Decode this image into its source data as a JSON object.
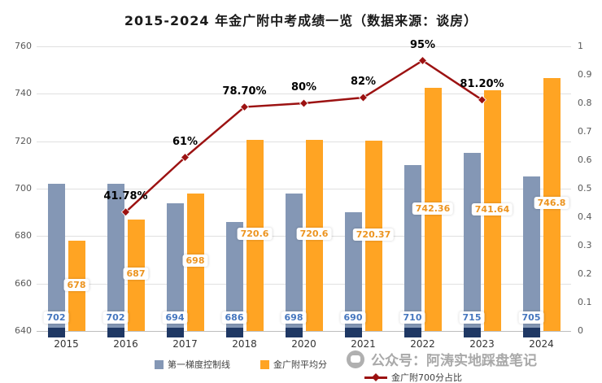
{
  "title": "2015-2024 年金广附中考成绩一览（数据来源：谈房）",
  "watermark": {
    "text": "公众号：阿涛实地踩盘笔记"
  },
  "chart_data": {
    "type": "bar",
    "subtype": "bar+line combo",
    "title": "2015-2024 年金广附中考成绩一览（数据来源：谈房）",
    "categories": [
      "2015",
      "2016",
      "2017",
      "2018",
      "2020",
      "2021",
      "2022",
      "2023",
      "2024"
    ],
    "series": [
      {
        "name": "第一梯度控制线",
        "type": "bar",
        "color": "#8497B5",
        "base_color": "#1F3864",
        "label_color": "#4576BE",
        "values": [
          702,
          702,
          694,
          686,
          698,
          690,
          710,
          715,
          705
        ],
        "labels": [
          "702",
          "702",
          "694",
          "686",
          "698",
          "690",
          "710",
          "715",
          "705"
        ]
      },
      {
        "name": "金广附平均分",
        "type": "bar",
        "color": "#FFA423",
        "label_color": "#EC9420",
        "values": [
          678,
          687,
          698,
          720.6,
          720.6,
          720.37,
          742.36,
          741.64,
          746.8
        ],
        "labels": [
          "678",
          "687",
          "698",
          "720.6",
          "720.6",
          "720.37",
          "742.36",
          "741.64",
          "746.8"
        ]
      },
      {
        "name": "金广附700分占比",
        "type": "line",
        "axis": "right",
        "color": "#9C1212",
        "values": [
          null,
          0.4178,
          0.61,
          0.787,
          0.8,
          0.82,
          0.95,
          0.812,
          null
        ],
        "labels": [
          null,
          "41.78%",
          "61%",
          "78.70%",
          "80%",
          "82%",
          "95%",
          "81.20%",
          null
        ]
      }
    ],
    "y_left": {
      "min": 640,
      "max": 760,
      "step": 20
    },
    "y_right": {
      "min": 0,
      "max": 1,
      "step": 0.1
    },
    "grid": true,
    "legend_position": "bottom"
  }
}
